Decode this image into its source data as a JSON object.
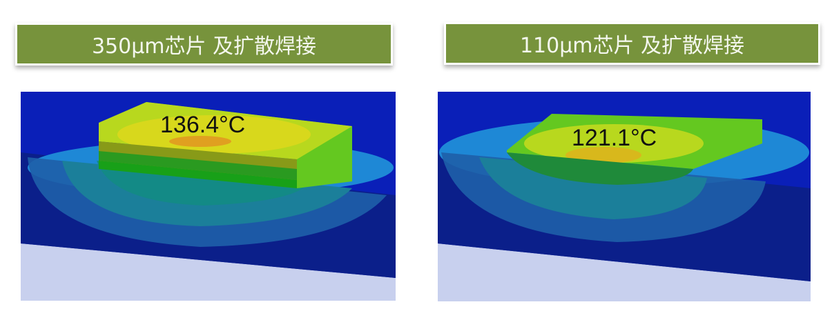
{
  "panels": [
    {
      "title": "350μm芯片 及扩散焊接",
      "temperature": "136.4°C"
    },
    {
      "title": "110μm芯片 及扩散焊接",
      "temperature": "121.1°C"
    }
  ],
  "colors": {
    "title_bg": "#77933c",
    "background_blue": "#0a1fb8",
    "substrate": "#0b1f8a",
    "base": "#c8d0ee",
    "hot": "#e0a020",
    "warm": "#d8d81c",
    "green": "#20b020"
  }
}
